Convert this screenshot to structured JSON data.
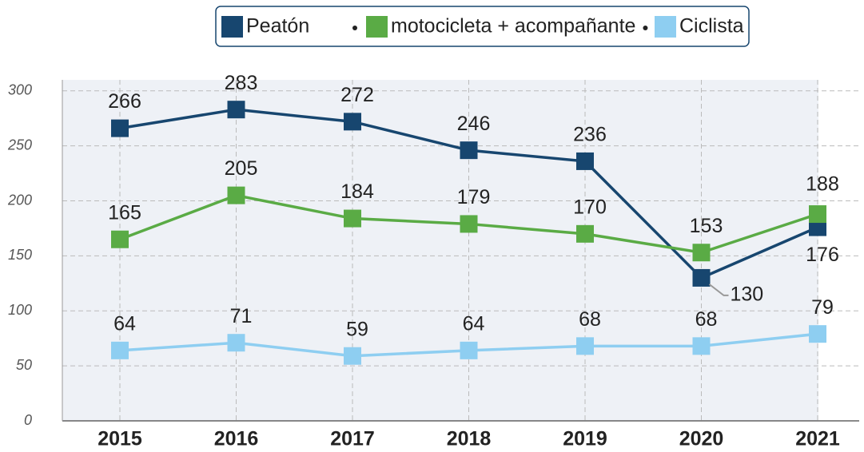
{
  "chart_data": {
    "type": "line",
    "categories": [
      "2015",
      "2016",
      "2017",
      "2018",
      "2019",
      "2020",
      "2021"
    ],
    "series": [
      {
        "name": "Peatón",
        "color": "#17466f",
        "values": [
          266,
          283,
          272,
          246,
          236,
          130,
          176
        ]
      },
      {
        "name": "motocicleta + acompañante",
        "color": "#5aab45",
        "values": [
          165,
          205,
          184,
          179,
          170,
          153,
          188
        ]
      },
      {
        "name": "Ciclista",
        "color": "#8ecef1",
        "values": [
          64,
          71,
          59,
          64,
          68,
          68,
          79
        ]
      }
    ],
    "ylim": [
      0,
      310
    ],
    "yticks": [
      0,
      50,
      100,
      150,
      200,
      250,
      300
    ],
    "grid": true,
    "legend": "top"
  }
}
